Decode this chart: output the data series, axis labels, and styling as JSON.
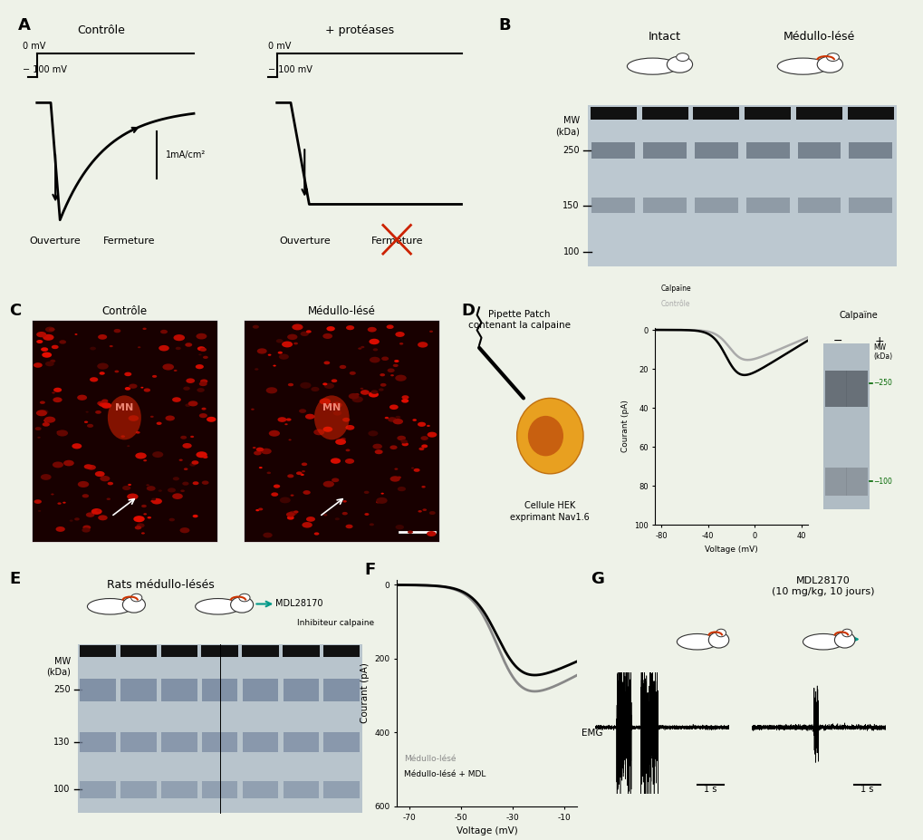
{
  "background_color": "#eef2e8",
  "panel_label_fontsize": 13,
  "panel_label_color": "#000000",
  "title_fontsize": 10,
  "panels": {
    "A": {
      "title": "Contrôle",
      "title2": "+ protéases",
      "label_0mV": "0 mV",
      "label_100mV": "− 100 mV",
      "scale_label": "1mA/cm²",
      "ouverture": "Ouverture",
      "fermeture": "Fermeture"
    },
    "B": {
      "title_intact": "Intact",
      "title_medulo": "Médullo-lésé",
      "MW_label": "MW\n(kDa)",
      "bands": [
        250,
        150,
        100
      ],
      "n_lanes": 6
    },
    "C": {
      "title_ctrl": "Contrôle",
      "title_med": "Médullo-lésé",
      "MN_label": "MN"
    },
    "D": {
      "pipette_label": "Pipette Patch\ncontenant la calpaine",
      "voltage_label": "Voltage (mV)",
      "voltage_ticks": [
        -80,
        -40,
        0,
        40
      ],
      "courant_label": "Courant (pA)",
      "courant_ticks": [
        0,
        20,
        40,
        60,
        80,
        100
      ],
      "hek_label": "Cellule HEK\nexprimant Nav1.6",
      "legend_ctrl": "Contrôle",
      "legend_calp": "Calpaïne",
      "calp_title": "Calpaïne",
      "calp_MW": "MW\n(kDa)"
    },
    "E": {
      "title1": "Rats médullo-lésés",
      "title2_mdl": "MDL28170",
      "title2_inh": "Inhibiteur calpaine",
      "MW_label": "MW\n(kDa)",
      "bands": [
        250,
        130,
        100
      ]
    },
    "F": {
      "voltage_label": "Voltage (mV)",
      "voltage_ticks": [
        -70,
        -50,
        -30,
        -10
      ],
      "courant_label": "Courant (pA)",
      "courant_ticks": [
        0,
        200,
        400,
        600
      ],
      "legend_med": "Médullo-lésé",
      "legend_mdl": "Médullo-lésé + MDL"
    },
    "G": {
      "emg_label": "EMG",
      "scale_label": "1 s",
      "title_mdl": "MDL28170\n(10 mg/kg, 10 jours)"
    }
  }
}
